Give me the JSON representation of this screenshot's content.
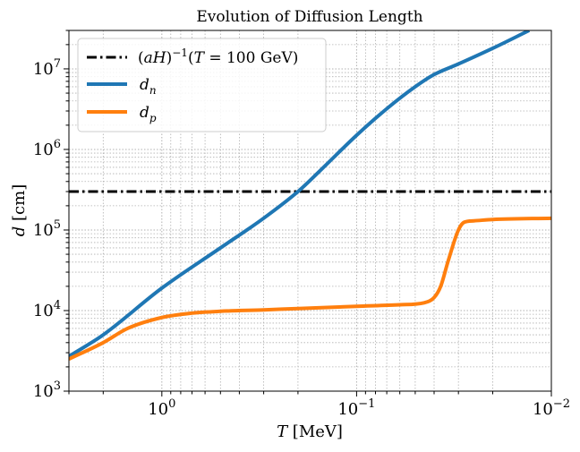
{
  "chart_data": {
    "type": "line",
    "title": "Evolution of Diffusion Length",
    "xlabel": "T [MeV]",
    "ylabel": "d [cm]",
    "xscale": "log",
    "yscale": "log",
    "x_reversed": true,
    "xlim": [
      3.0,
      0.01
    ],
    "ylim": [
      1000,
      30000000
    ],
    "grid": true,
    "legend_position": "top-left",
    "x_ticks": [
      {
        "value": 1,
        "base": "10",
        "exp": "0"
      },
      {
        "value": 0.1,
        "base": "10",
        "exp": "−1"
      },
      {
        "value": 0.01,
        "base": "10",
        "exp": "−2"
      }
    ],
    "y_ticks": [
      {
        "value": 1000,
        "base": "10",
        "exp": "3"
      },
      {
        "value": 10000,
        "base": "10",
        "exp": "4"
      },
      {
        "value": 100000,
        "base": "10",
        "exp": "5"
      },
      {
        "value": 1000000,
        "base": "10",
        "exp": "6"
      },
      {
        "value": 10000000,
        "base": "10",
        "exp": "7"
      }
    ],
    "series": [
      {
        "name": "(aH)^−1(T = 100 GeV)",
        "color": "#000000",
        "style": "dashdot",
        "points": [
          [
            3.0,
            300000
          ],
          [
            0.01,
            300000
          ]
        ]
      },
      {
        "name": "d_n",
        "color": "#1f77b4",
        "style": "solid",
        "points": [
          [
            3.0,
            2700
          ],
          [
            2.0,
            5000
          ],
          [
            1.0,
            19000
          ],
          [
            0.5,
            60000
          ],
          [
            0.3,
            140000
          ],
          [
            0.2,
            300000
          ],
          [
            0.15,
            580000
          ],
          [
            0.1,
            1500000
          ],
          [
            0.07,
            3200000
          ],
          [
            0.05,
            6000000
          ],
          [
            0.04,
            8500000
          ],
          [
            0.03,
            11500000
          ],
          [
            0.02,
            18000000
          ],
          [
            0.013,
            30000000
          ]
        ]
      },
      {
        "name": "d_p",
        "color": "#ff7f0e",
        "style": "solid",
        "points": [
          [
            3.0,
            2500
          ],
          [
            2.0,
            4000
          ],
          [
            1.5,
            6000
          ],
          [
            1.0,
            8200
          ],
          [
            0.7,
            9300
          ],
          [
            0.5,
            9800
          ],
          [
            0.3,
            10200
          ],
          [
            0.2,
            10600
          ],
          [
            0.1,
            11300
          ],
          [
            0.06,
            11800
          ],
          [
            0.045,
            12500
          ],
          [
            0.04,
            14500
          ],
          [
            0.037,
            20000
          ],
          [
            0.034,
            40000
          ],
          [
            0.03,
            100000
          ],
          [
            0.028,
            125000
          ],
          [
            0.025,
            130000
          ],
          [
            0.02,
            135000
          ],
          [
            0.01,
            140000
          ]
        ]
      }
    ]
  }
}
